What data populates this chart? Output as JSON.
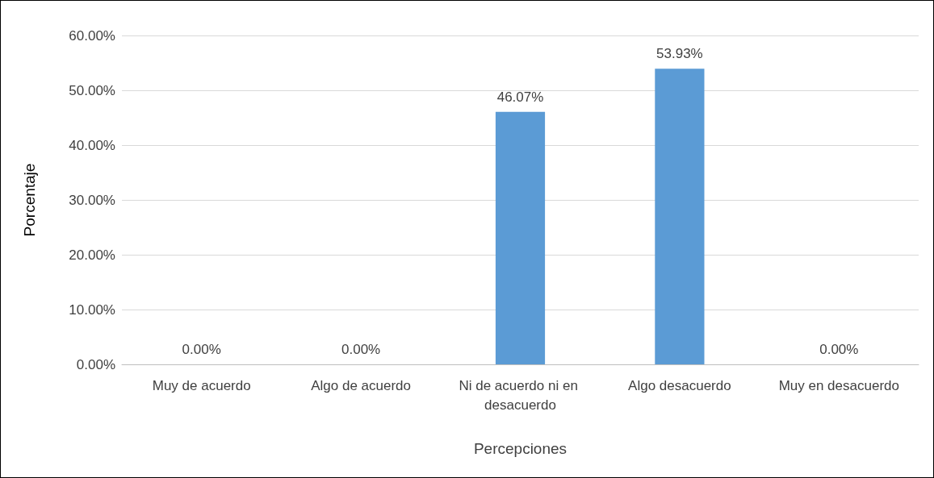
{
  "chart_data": {
    "type": "bar",
    "xlabel": "Percepciones",
    "ylabel": "Porcentaje",
    "categories": [
      "Muy de acuerdo",
      "Algo de acuerdo",
      "Ni de acuerdo ni en desacuerdo",
      "Algo desacuerdo",
      "Muy en desacuerdo"
    ],
    "values": [
      0,
      0,
      46.07,
      53.93,
      0
    ],
    "value_labels": [
      "0.00%",
      "0.00%",
      "46.07%",
      "53.93%",
      "0.00%"
    ],
    "color": "#5b9bd5",
    "ylim": [
      0,
      60
    ],
    "yticks": [
      {
        "value": 0,
        "label": "0.00%"
      },
      {
        "value": 10,
        "label": "10.00%"
      },
      {
        "value": 20,
        "label": "20.00%"
      },
      {
        "value": 30,
        "label": "30.00%"
      },
      {
        "value": 40,
        "label": "40.00%"
      },
      {
        "value": 50,
        "label": "50.00%"
      },
      {
        "value": 60,
        "label": "60.00%"
      }
    ],
    "grid": "y"
  }
}
